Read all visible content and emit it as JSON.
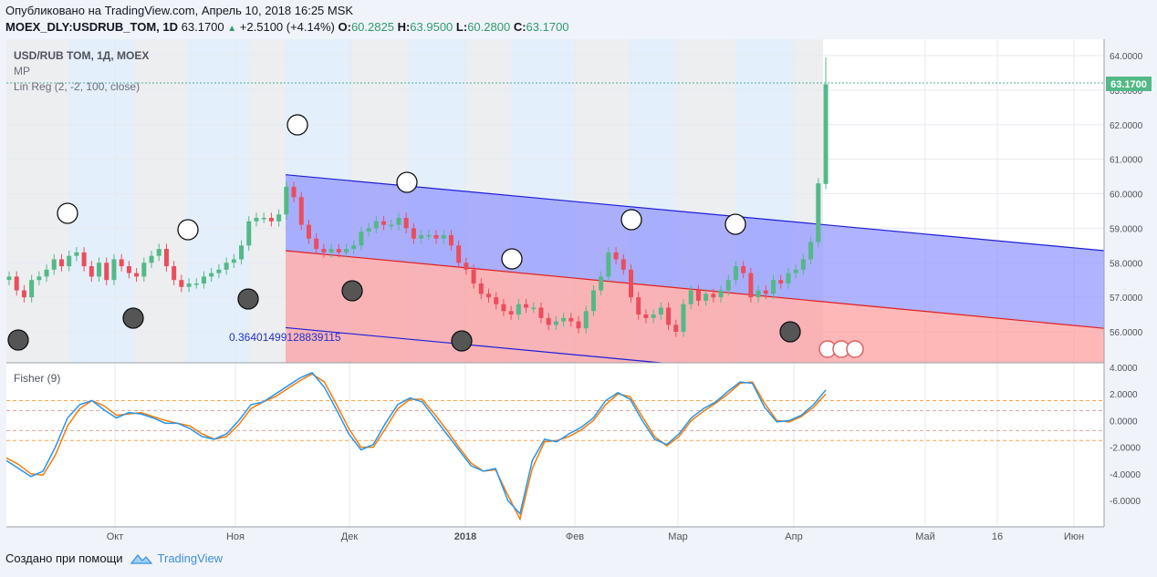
{
  "header": {
    "published": "Опубликовано на TradingView.com, Апрель 10, 2018 16:25 MSK",
    "symbol": "MOEX_DLY:USDRUB_TOM, 1D",
    "last": "63.1700",
    "change": "+2.5100 (+4.14%)",
    "o_label": "O:",
    "o_value": "60.2825",
    "h_label": "H:",
    "h_value": "63.9500",
    "l_label": "L:",
    "l_value": "60.2800",
    "c_label": "C:",
    "c_value": "63.1700"
  },
  "legend": {
    "title": "USD/RUB TOM, 1Д, MOEX",
    "line2": "MP",
    "line3": "Lin Reg (2, -2, 100, close)"
  },
  "indicator_label": "Fisher (9)",
  "regression_label": "0.36401499128839115",
  "price_tag": "63.1700",
  "footer": {
    "made_with": "Создано при помощи",
    "brand": "TradingView"
  },
  "colors": {
    "up": "#53b987",
    "down": "#eb4d5c",
    "channel_upper": "#8f93ff",
    "channel_lower": "#ff9a9a",
    "fisher": "#2196f3",
    "trigger": "#ff7a00",
    "accent": "#3b8fd9"
  },
  "chart_data": {
    "type": "candlestick",
    "price_axis": {
      "min": 55.0,
      "max": 64.0,
      "ticks": [
        "64.0000",
        "63.0000",
        "62.0000",
        "61.0000",
        "60.0000",
        "59.0000",
        "58.0000",
        "57.0000",
        "56.0000"
      ]
    },
    "fisher_axis": {
      "min": -8,
      "max": 4,
      "ticks": [
        "4.0000",
        "2.0000",
        "0.0000",
        "-2.0000",
        "-4.0000",
        "-6.0000"
      ]
    },
    "time_labels": [
      "Окт",
      "Ноя",
      "Дек",
      "2018",
      "Фев",
      "Мар",
      "Апр",
      "Май",
      "16",
      "Июн"
    ],
    "closes": [
      57.6,
      57.2,
      57.0,
      57.5,
      57.6,
      57.8,
      58.1,
      57.9,
      58.2,
      58.3,
      57.9,
      57.6,
      58.0,
      57.5,
      58.1,
      57.9,
      57.7,
      57.6,
      58.0,
      58.2,
      58.4,
      57.9,
      57.5,
      57.3,
      57.4,
      57.4,
      57.6,
      57.7,
      57.8,
      58.0,
      58.1,
      58.5,
      59.2,
      59.3,
      59.3,
      59.2,
      59.4,
      60.2,
      59.9,
      59.1,
      58.7,
      58.4,
      58.3,
      58.4,
      58.3,
      58.4,
      58.5,
      58.9,
      59.0,
      59.2,
      59.1,
      59.1,
      59.3,
      59.0,
      58.7,
      58.8,
      58.8,
      58.7,
      58.8,
      58.5,
      58.0,
      57.8,
      57.4,
      57.1,
      57.0,
      56.8,
      56.6,
      56.5,
      56.8,
      56.7,
      56.7,
      56.4,
      56.2,
      56.3,
      56.4,
      56.3,
      56.1,
      56.6,
      57.2,
      57.6,
      58.3,
      58.1,
      57.8,
      57.0,
      56.5,
      56.4,
      56.5,
      56.7,
      56.2,
      56.0,
      56.8,
      57.2,
      56.9,
      57.1,
      57.0,
      57.2,
      57.5,
      57.9,
      57.7,
      57.0,
      57.2,
      57.1,
      57.5,
      57.4,
      57.7,
      57.8,
      58.1,
      58.6,
      60.3,
      63.17
    ],
    "regression": {
      "upper_start": 60.55,
      "upper_end": 58.35,
      "mid_start": 58.35,
      "mid_end": 56.1,
      "lower_start": 56.12,
      "lower_end": 53.9
    },
    "fisher": [
      -3.0,
      -3.6,
      -4.2,
      -3.8,
      -2.0,
      0.2,
      1.2,
      1.5,
      0.8,
      0.2,
      0.6,
      0.5,
      0.2,
      -0.2,
      -0.2,
      -0.6,
      -1.2,
      -1.4,
      -1.0,
      0.0,
      1.2,
      1.4,
      2.0,
      2.6,
      3.2,
      3.6,
      2.5,
      0.8,
      -1.0,
      -2.2,
      -1.8,
      -0.2,
      1.2,
      1.7,
      1.4,
      0.2,
      -1.0,
      -2.2,
      -3.4,
      -3.8,
      -3.6,
      -6.0,
      -7.0,
      -3.0,
      -1.4,
      -1.6,
      -1.0,
      -0.5,
      0.2,
      1.5,
      2.1,
      1.6,
      0.0,
      -1.4,
      -1.8,
      -1.0,
      0.2,
      0.9,
      1.4,
      2.2,
      2.9,
      2.8,
      1.0,
      -0.1,
      0.0,
      0.4,
      1.2,
      2.3
    ],
    "trigger": [
      -2.8,
      -3.3,
      -4.0,
      -4.1,
      -2.6,
      -0.4,
      0.9,
      1.5,
      1.1,
      0.4,
      0.5,
      0.6,
      0.3,
      0.0,
      -0.2,
      -0.4,
      -1.0,
      -1.4,
      -1.2,
      -0.3,
      0.9,
      1.4,
      1.8,
      2.4,
      3.0,
      3.5,
      2.9,
      1.2,
      -0.6,
      -2.0,
      -2.0,
      -0.6,
      0.9,
      1.6,
      1.6,
      0.5,
      -0.7,
      -2.0,
      -3.2,
      -3.8,
      -3.7,
      -5.6,
      -7.4,
      -3.6,
      -1.6,
      -1.5,
      -1.2,
      -0.7,
      0.0,
      1.2,
      2.0,
      1.8,
      0.3,
      -1.2,
      -1.9,
      -1.2,
      0.0,
      0.7,
      1.3,
      2.0,
      2.8,
      2.9,
      1.3,
      0.0,
      -0.1,
      0.3,
      1.0,
      2.0
    ]
  }
}
